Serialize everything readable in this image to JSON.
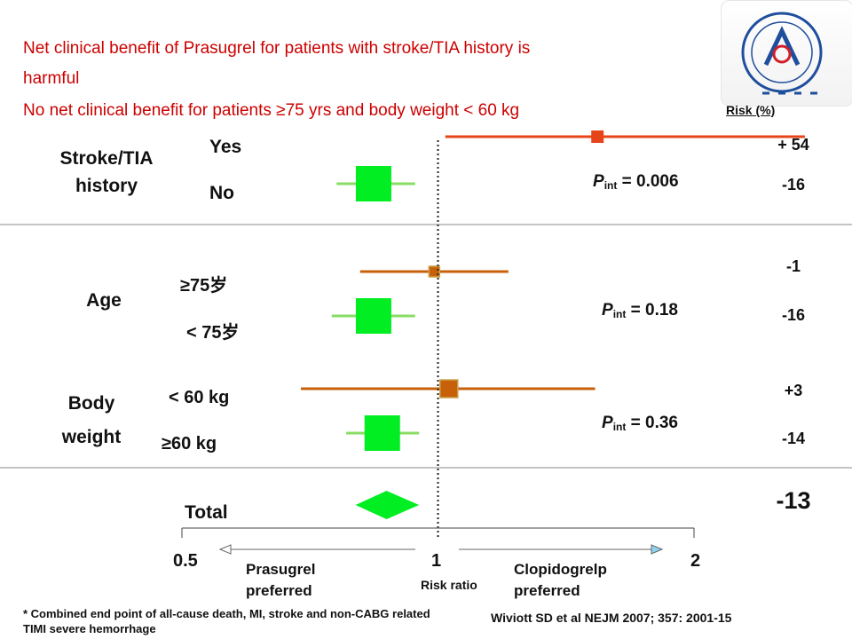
{
  "headlines": {
    "line1": "Net clinical benefit of Prasugrel for patients with stroke/TIA history is",
    "line2": "harmful",
    "line3": "No net clinical benefit for patients ≥75 yrs and body weight < 60 kg"
  },
  "risk_header": "Risk (%)",
  "groups": {
    "stroke": {
      "label_l1": "Stroke/TIA",
      "label_l2": "history",
      "sub1": "Yes",
      "sub2": "No",
      "pint_label": "P",
      "pint_sub": "int",
      "pint_value": "= 0.006"
    },
    "age": {
      "label": "Age",
      "sub1": "≥75岁",
      "sub2": "< 75岁",
      "pint_label": "P",
      "pint_sub": "int",
      "pint_value": "= 0.18"
    },
    "weight": {
      "label_l1": "Body",
      "label_l2": "weight",
      "sub1": "< 60 kg",
      "sub2": "≥60 kg",
      "pint_label": "P",
      "pint_sub": "int",
      "pint_value": "= 0.36"
    },
    "total": {
      "label": "Total"
    }
  },
  "risk_values": [
    "+ 54",
    "-16",
    "-1",
    "-16",
    "+3",
    "-14",
    "-13"
  ],
  "axis": {
    "ticks": [
      "0.5",
      "1",
      "2"
    ],
    "xlabel": "Risk ratio",
    "left_dir_l1": "Prasugrel",
    "left_dir_l2": "preferred",
    "right_dir_l1": "Clopidogrelp",
    "right_dir_l2": "preferred"
  },
  "footnote": "* Combined end point of all-cause death, MI, stroke and non-CABG related TIMI severe hemorrhage",
  "citation": "Wiviott SD et al  NEJM 2007;  357:  2001-15",
  "colors": {
    "headline": "#cc0000",
    "harm": "#e8441a",
    "neutral": "#c8600a",
    "benefit": "#00ee22",
    "benefit_ci": "#88dd66"
  },
  "chart_data": {
    "type": "forest",
    "scale": "log",
    "xlim": [
      0.5,
      2
    ],
    "reference": 1,
    "xlabel": "Risk ratio",
    "rows": [
      {
        "group": "Stroke/TIA history",
        "label": "Yes",
        "hr": 1.54,
        "ci": [
          1.02,
          2.7
        ],
        "color": "#e8441a"
      },
      {
        "group": "Stroke/TIA history",
        "label": "No",
        "hr": 0.84,
        "ci": [
          0.76,
          0.94
        ],
        "color": "#00ee22"
      },
      {
        "group": "Age",
        "label": "≥75岁",
        "hr": 0.99,
        "ci": [
          0.81,
          1.21
        ],
        "color": "#c8600a"
      },
      {
        "group": "Age",
        "label": "< 75岁",
        "hr": 0.84,
        "ci": [
          0.75,
          0.94
        ],
        "color": "#00ee22"
      },
      {
        "group": "Body weight",
        "label": "< 60 kg",
        "hr": 1.03,
        "ci": [
          0.69,
          1.53
        ],
        "color": "#c8600a"
      },
      {
        "group": "Body weight",
        "label": "≥60 kg",
        "hr": 0.86,
        "ci": [
          0.78,
          0.95
        ],
        "color": "#00ee22"
      },
      {
        "group": "Total",
        "label": "Total",
        "hr": 0.87,
        "ci": [
          0.8,
          0.95
        ],
        "color": "#00ee22",
        "shape": "diamond"
      }
    ]
  }
}
